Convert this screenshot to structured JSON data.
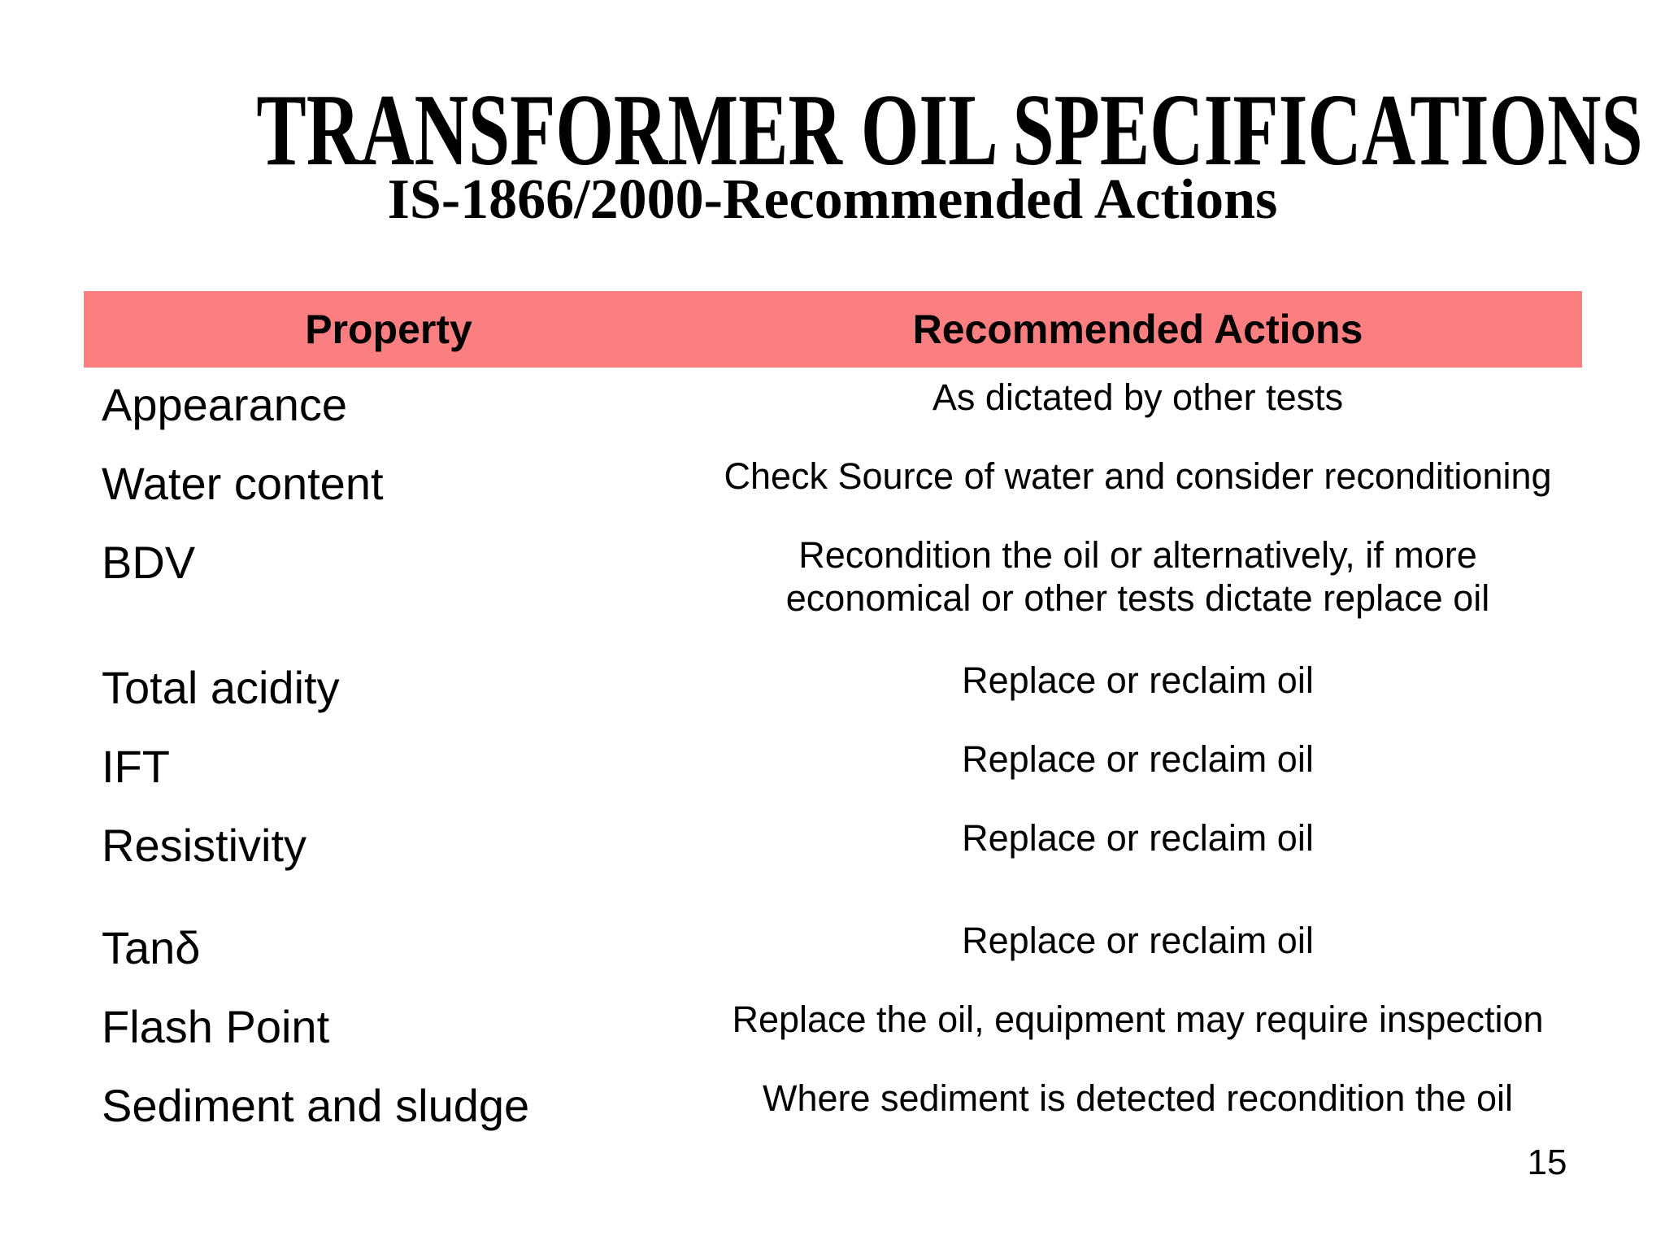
{
  "slide": {
    "title": "TRANSFORMER OIL SPECIFICATIONS",
    "subtitle": "IS-1866/2000-Recommended Actions",
    "page_number": "15",
    "colors": {
      "background": "#FFFFFF",
      "table_header_bg": "#FB7E80",
      "text": "#000000"
    }
  },
  "table": {
    "columns": [
      "Property",
      "Recommended Actions"
    ],
    "rows": [
      {
        "property": "Appearance",
        "action": "As dictated by other tests"
      },
      {
        "property": "Water content",
        "action": "Check Source of water and consider reconditioning"
      },
      {
        "property": "BDV",
        "action": "Recondition the oil or alternatively, if more economical or other tests dictate replace oil"
      },
      {
        "property": "Total acidity",
        "action": "Replace or reclaim oil"
      },
      {
        "property": "IFT",
        "action": "Replace or reclaim oil"
      },
      {
        "property": "Resistivity",
        "action": "Replace or reclaim oil"
      },
      {
        "property": "Tanδ",
        "action": "Replace or reclaim oil"
      },
      {
        "property": "Flash Point",
        "action": "Replace the oil, equipment may require inspection"
      },
      {
        "property": "Sediment and sludge",
        "action": "Where sediment is detected recondition the oil"
      }
    ]
  }
}
